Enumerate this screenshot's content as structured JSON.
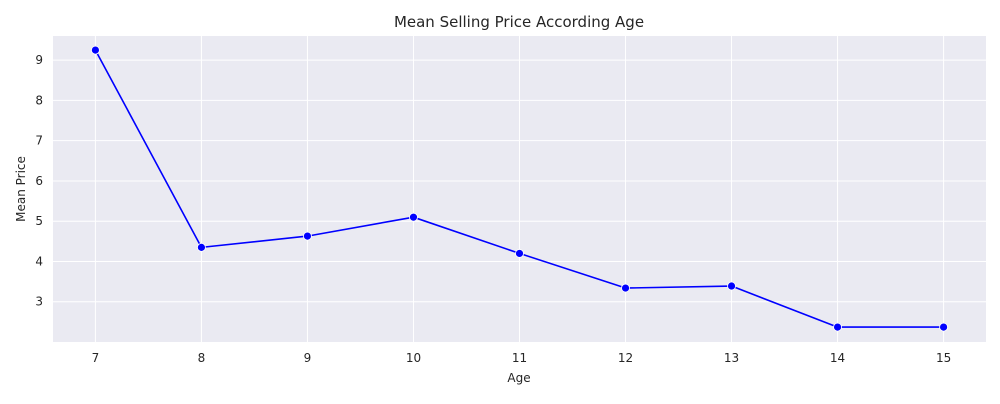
{
  "chart_data": {
    "type": "line",
    "title": "Mean Selling Price According Age",
    "xlabel": "Age",
    "ylabel": "Mean Price",
    "x": [
      7,
      8,
      9,
      10,
      11,
      12,
      13,
      14,
      15
    ],
    "series": [
      {
        "values": [
          9.25,
          4.35,
          4.63,
          5.1,
          4.2,
          3.34,
          3.39,
          2.37,
          2.37
        ]
      }
    ],
    "xticks": [
      "7",
      "8",
      "9",
      "10",
      "11",
      "12",
      "13",
      "14",
      "15"
    ],
    "yticks": [
      "3",
      "4",
      "5",
      "6",
      "7",
      "8",
      "9"
    ],
    "xlim": [
      6.6,
      15.4
    ],
    "ylim": [
      2.0,
      9.6
    ],
    "grid": true,
    "legend": "none",
    "colors": {
      "line": "#0000ff",
      "marker": "#0000ff",
      "plot_background": "#eaeaf2",
      "grid": "#ffffff"
    }
  }
}
